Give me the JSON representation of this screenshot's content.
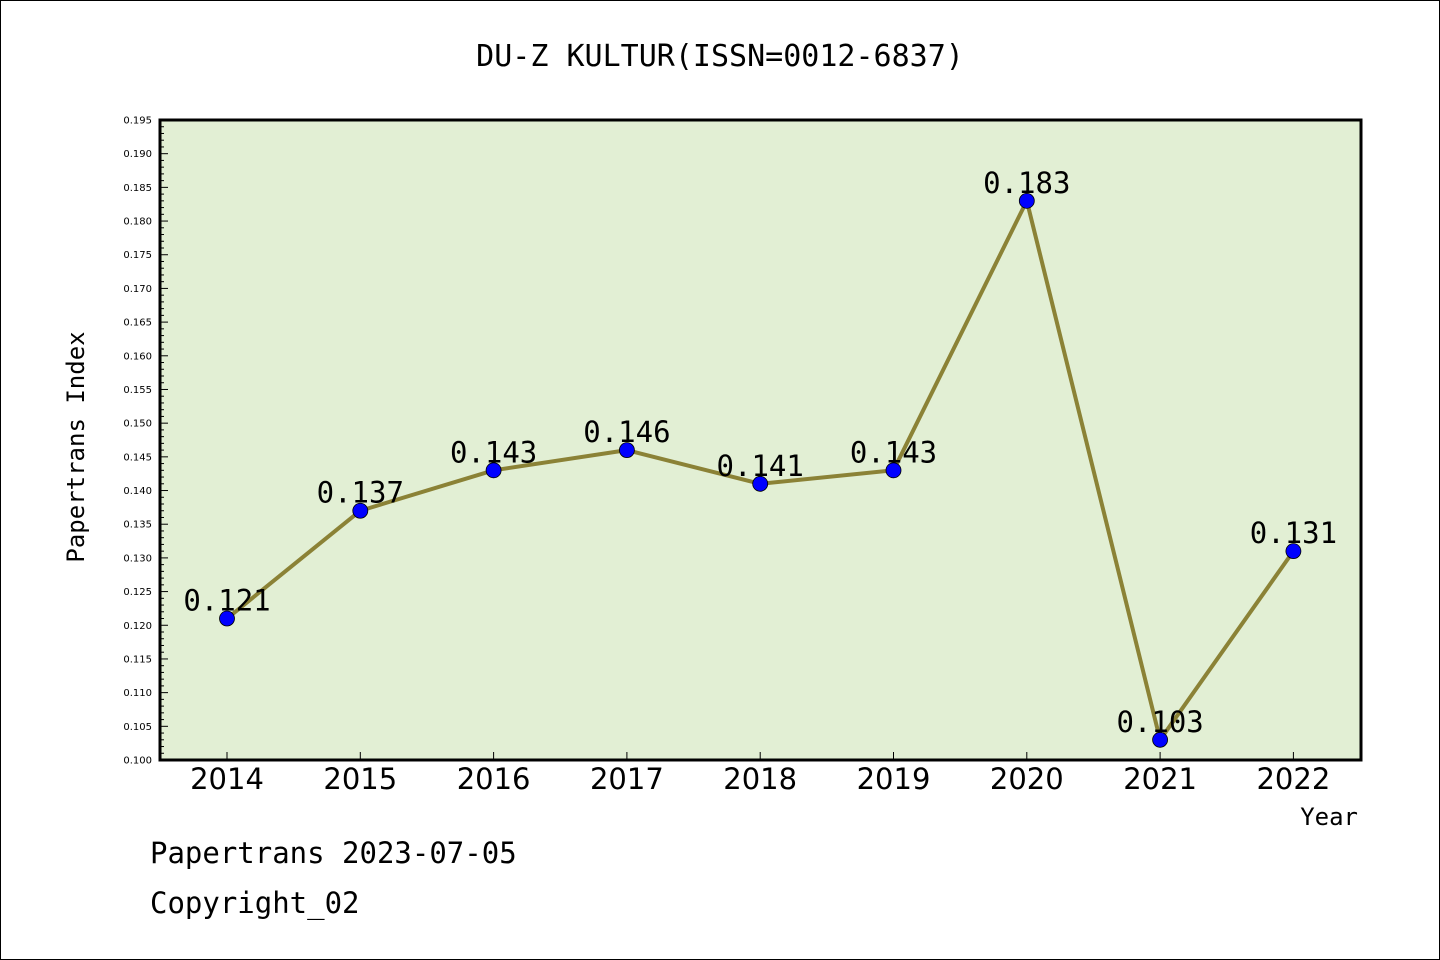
{
  "chart_data": {
    "type": "line",
    "title": "DU-Z KULTUR(ISSN=0012-6837)",
    "xlabel": "Year",
    "ylabel": "Papertrans Index",
    "categories": [
      "2014",
      "2015",
      "2016",
      "2017",
      "2018",
      "2019",
      "2020",
      "2021",
      "2022"
    ],
    "values": [
      0.121,
      0.137,
      0.143,
      0.146,
      0.141,
      0.143,
      0.183,
      0.103,
      0.131
    ],
    "data_labels": [
      "0.121",
      "0.137",
      "0.143",
      "0.146",
      "0.141",
      "0.143",
      "0.183",
      "0.103",
      "0.131"
    ],
    "ylim": [
      0.1,
      0.195
    ],
    "ytick_step": 0.005,
    "grid": false,
    "colors": {
      "plot_background": "#e2efd4",
      "line": "#8b8236",
      "marker": "#0000ff"
    }
  },
  "footer": {
    "date_line": "Papertrans 2023-07-05",
    "copyright": "Copyright_02"
  }
}
